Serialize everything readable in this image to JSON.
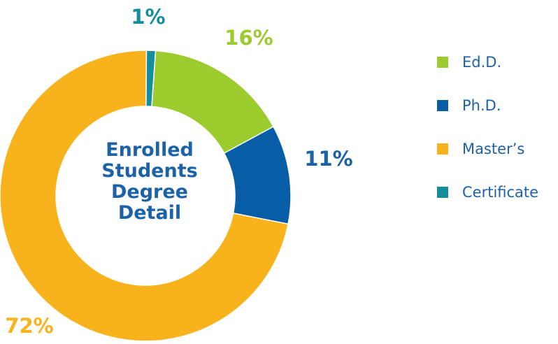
{
  "chart_data": {
    "type": "pie",
    "donut": true,
    "center_title": [
      "Enrolled",
      "Students",
      "Degree",
      "Detail"
    ],
    "categories": [
      "Ed.D.",
      "Ph.D.",
      "Master’s",
      "Certificate"
    ],
    "values": [
      16,
      11,
      72,
      1
    ],
    "value_labels": [
      "16%",
      "11%",
      "72%",
      "1%"
    ],
    "colors": [
      "#9bcb2d",
      "#075ea6",
      "#f8b21c",
      "#148e9c"
    ],
    "label_colors": [
      "#9bcb2d",
      "#1b62a6",
      "#f8b21c",
      "#148e9c"
    ],
    "legend_position": "right"
  }
}
